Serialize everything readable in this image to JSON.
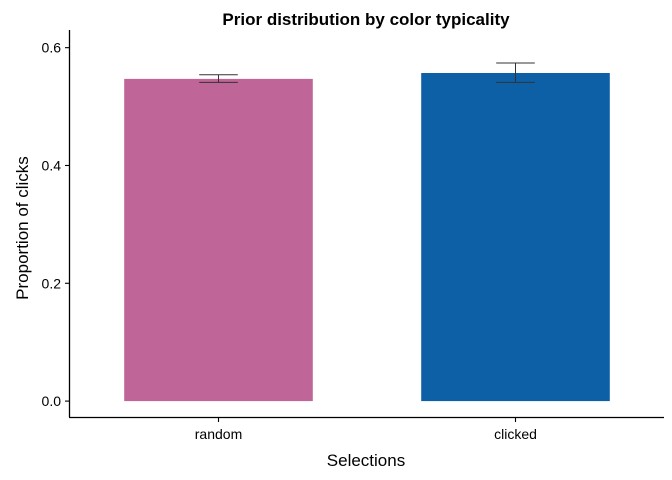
{
  "chart_data": {
    "type": "bar",
    "title": "Prior distribution by color typicality",
    "xlabel": "Selections",
    "ylabel": "Proportion of clicks",
    "categories": [
      "random",
      "clicked"
    ],
    "values": [
      0.547,
      0.557
    ],
    "error_low": [
      0.541,
      0.541
    ],
    "error_high": [
      0.554,
      0.574
    ],
    "colors": [
      "#c06598",
      "#0d5fa6"
    ],
    "yticks": [
      "0.0",
      "0.2",
      "0.4",
      "0.6"
    ],
    "ylim": [
      -0.027,
      0.63
    ],
    "grid": false,
    "legend": "none"
  }
}
